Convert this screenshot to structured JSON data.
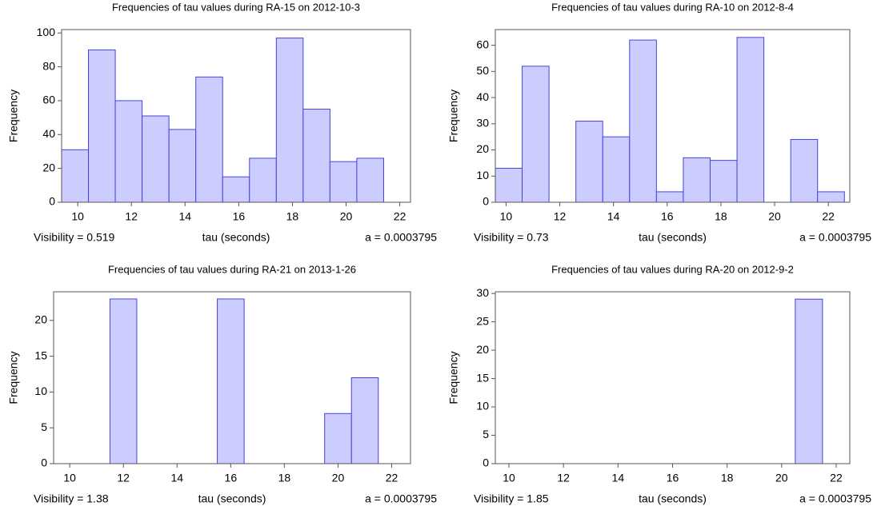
{
  "chart_data": [
    {
      "type": "histogram",
      "title": "Frequencies of tau values during RA-15 on 2012-10-3",
      "x_label": "tau (seconds)",
      "y_label": "Frequency",
      "left_note": "Visibility = 0.519",
      "right_note": "a = 0.0003795",
      "bins": [
        9.4,
        10.4,
        11.4,
        12.4,
        13.4,
        14.4,
        15.4,
        16.4,
        17.4,
        18.4,
        19.4,
        20.4,
        21.4
      ],
      "counts": [
        31,
        90,
        60,
        51,
        43,
        74,
        15,
        26,
        97,
        55,
        24,
        26
      ],
      "color": "#ccccff",
      "edgecolor": "#4444dd",
      "xlim": [
        9.4,
        22.4
      ],
      "xticks": [
        10,
        12,
        14,
        16,
        18,
        20,
        22
      ],
      "ylim": [
        0,
        102
      ],
      "yticks": [
        0,
        20,
        40,
        60,
        80,
        100
      ]
    },
    {
      "type": "histogram",
      "title": "Frequencies of tau values during RA-10 on 2012-8-4",
      "x_label": "tau (seconds)",
      "y_label": "Frequency",
      "left_note": "Visibility = 0.73",
      "right_note": "a = 0.0003795",
      "bins": [
        9.6,
        10.6,
        11.6,
        12.6,
        13.6,
        14.6,
        15.6,
        16.6,
        17.6,
        18.6,
        19.6,
        20.6,
        21.6,
        22.6
      ],
      "counts": [
        13,
        52,
        0,
        31,
        25,
        62,
        4,
        17,
        16,
        63,
        0,
        24,
        4
      ],
      "color": "#ccccff",
      "edgecolor": "#4444dd",
      "xlim": [
        9.6,
        22.8
      ],
      "xticks": [
        10,
        12,
        14,
        16,
        18,
        20,
        22
      ],
      "ylim": [
        0,
        66
      ],
      "yticks": [
        0,
        10,
        20,
        30,
        40,
        50,
        60
      ]
    },
    {
      "type": "histogram",
      "title": "Frequencies of tau values during RA-21 on 2013-1-26",
      "x_label": "tau (seconds)",
      "y_label": "Frequency",
      "left_note": "Visibility = 1.38",
      "right_note": "a = 0.0003795",
      "bins": [
        11.5,
        12.5,
        13.5,
        14.5,
        15.5,
        16.5,
        17.5,
        18.5,
        19.5,
        20.5,
        21.5
      ],
      "counts": [
        23,
        0,
        0,
        0,
        23,
        0,
        0,
        0,
        7,
        12
      ],
      "color": "#ccccff",
      "edgecolor": "#4444dd",
      "xlim": [
        9.4,
        22.7
      ],
      "xticks": [
        10,
        12,
        14,
        16,
        18,
        20,
        22
      ],
      "ylim": [
        0,
        24
      ],
      "yticks": [
        0,
        5,
        10,
        15,
        20
      ]
    },
    {
      "type": "histogram",
      "title": "Frequencies of tau values during RA-20 on 2012-9-2",
      "x_label": "tau (seconds)",
      "y_label": "Frequency",
      "left_note": "Visibility = 1.85",
      "right_note": "a = 0.0003795",
      "bins": [
        20.5,
        21.5
      ],
      "counts": [
        29
      ],
      "color": "#ccccff",
      "edgecolor": "#4444dd",
      "xlim": [
        9.5,
        22.5
      ],
      "xticks": [
        10,
        12,
        14,
        16,
        18,
        20,
        22
      ],
      "ylim": [
        0,
        30.3
      ],
      "yticks": [
        0,
        5,
        10,
        15,
        20,
        25,
        30
      ]
    }
  ]
}
